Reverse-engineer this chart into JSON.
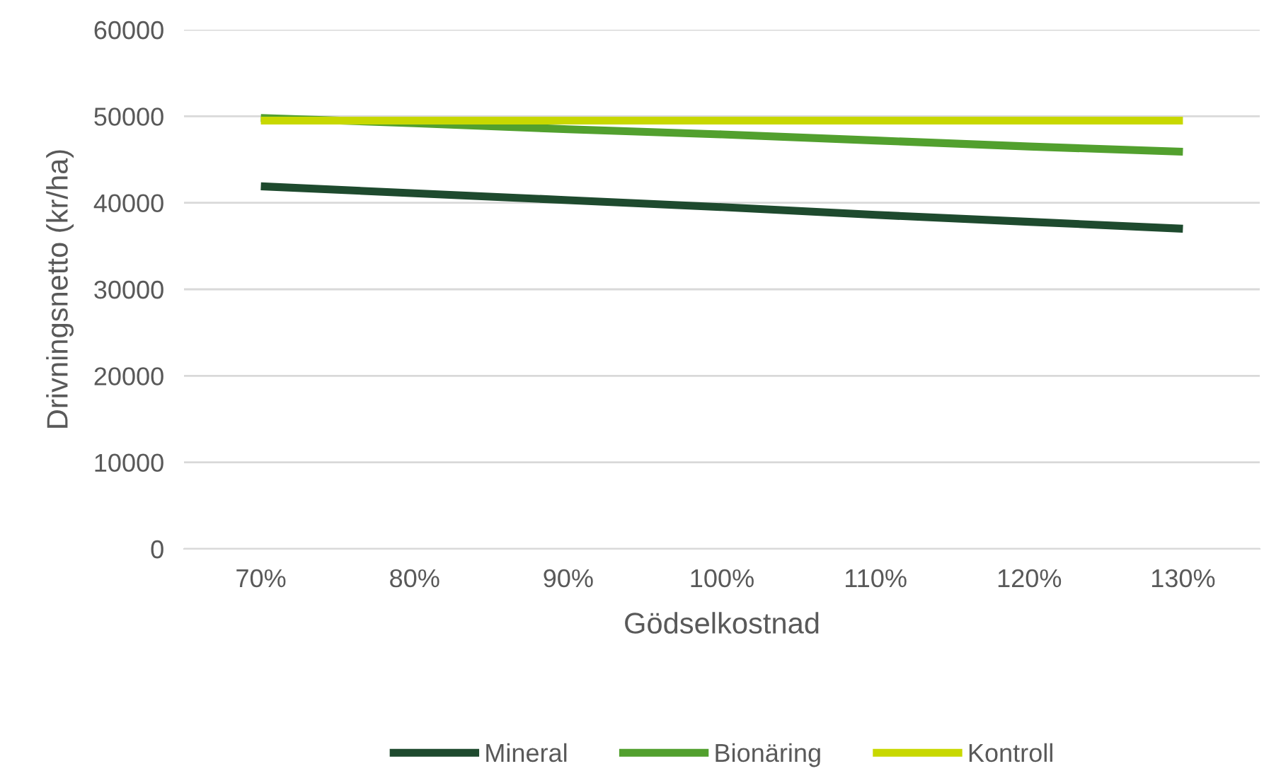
{
  "chart_data": {
    "type": "line",
    "xlabel": "Gödselkostnad",
    "ylabel": "Drivningsnetto (kr/ha)",
    "categories": [
      "70%",
      "80%",
      "90%",
      "100%",
      "110%",
      "120%",
      "130%"
    ],
    "series": [
      {
        "name": "Mineral",
        "color": "#1e4a2e",
        "values": [
          41900,
          41100,
          40300,
          39500,
          38600,
          37800,
          37000
        ]
      },
      {
        "name": "Bionäring",
        "color": "#52a02e",
        "values": [
          49800,
          49200,
          48500,
          47900,
          47200,
          46500,
          45900
        ]
      },
      {
        "name": "Kontroll",
        "color": "#c8d800",
        "values": [
          49500,
          49500,
          49500,
          49500,
          49500,
          49500,
          49500
        ]
      }
    ],
    "ylim": [
      0,
      60000
    ],
    "yticks": [
      0,
      10000,
      20000,
      30000,
      40000,
      50000,
      60000
    ],
    "grid": "y",
    "legend": "bottom",
    "marker": "none",
    "line_style": "solid"
  }
}
